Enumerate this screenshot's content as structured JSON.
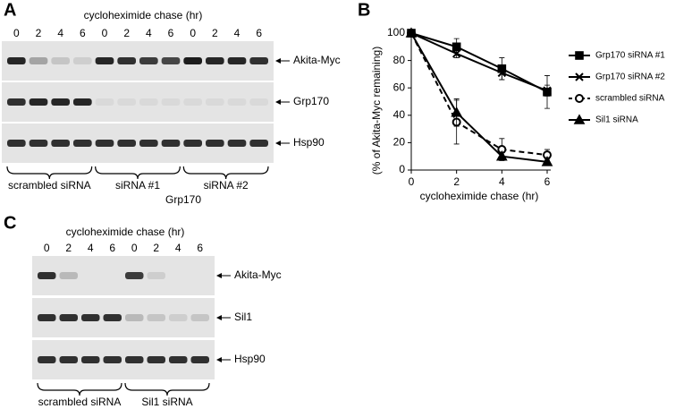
{
  "panel_a": {
    "label": "A",
    "header": "cycloheximide chase (hr)",
    "lanes": [
      "0",
      "2",
      "4",
      "6",
      "0",
      "2",
      "4",
      "6",
      "0",
      "2",
      "4",
      "6"
    ],
    "blots": [
      "Akita-Myc",
      "Grp170",
      "Hsp90"
    ],
    "groups": [
      "scrambled siRNA",
      "siRNA #1",
      "siRNA #2"
    ],
    "group_label": "Grp170"
  },
  "chart_data": {
    "type": "line",
    "panel_label": "B",
    "xlabel": "cycloheximide chase (hr)",
    "ylabel": "(% of Akita-Myc remaining)",
    "x": [
      0,
      2,
      4,
      6
    ],
    "xlim": [
      0,
      6
    ],
    "xticks": [
      0,
      2,
      4,
      6
    ],
    "ylim": [
      0,
      100
    ],
    "yticks": [
      0,
      20,
      40,
      60,
      80,
      100
    ],
    "series": [
      {
        "name": "Grp170 siRNA #1",
        "color": "#000000",
        "marker": "square",
        "dashed": false,
        "values": [
          100,
          90,
          74,
          57
        ],
        "errors": [
          1,
          6,
          8,
          12
        ]
      },
      {
        "name": "Grp170 siRNA #2",
        "color": "#000000",
        "marker": "x",
        "dashed": false,
        "values": [
          100,
          85,
          71,
          58
        ],
        "errors": [
          1,
          3,
          5,
          4
        ]
      },
      {
        "name": "scrambled siRNA",
        "color": "#000000",
        "marker": "circle",
        "dashed": true,
        "values": [
          100,
          35,
          15,
          11
        ],
        "errors": [
          1,
          16,
          8,
          4
        ]
      },
      {
        "name": "Sil1 siRNA",
        "color": "#000000",
        "marker": "triangle",
        "dashed": false,
        "values": [
          100,
          42,
          10,
          6
        ],
        "errors": [
          1,
          10,
          3,
          2
        ]
      }
    ]
  },
  "panel_c": {
    "label": "C",
    "header": "cycloheximide chase (hr)",
    "lanes": [
      "0",
      "2",
      "4",
      "6",
      "0",
      "2",
      "4",
      "6"
    ],
    "blots": [
      "Akita-Myc",
      "Sil1",
      "Hsp90"
    ],
    "groups": [
      "scrambled siRNA",
      "Sil1 siRNA"
    ]
  }
}
